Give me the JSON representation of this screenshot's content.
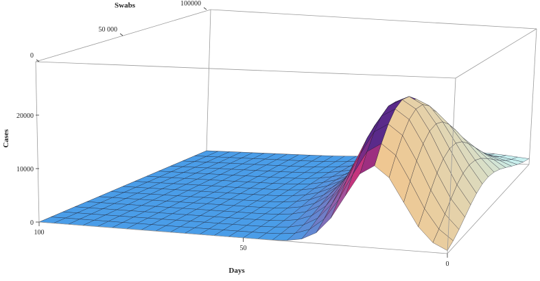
{
  "chart_data": {
    "type": "surface3d",
    "title": "",
    "axes": {
      "x": {
        "label": "Days",
        "range": [
          0,
          100
        ],
        "ticks": [
          0,
          50,
          100
        ]
      },
      "y": {
        "label": "Swabs",
        "range": [
          0,
          100000
        ],
        "ticks": [
          0,
          50000,
          100000
        ],
        "tick_labels": [
          "0",
          "50 000",
          "100000"
        ]
      },
      "z": {
        "label": "Cases",
        "range": [
          0,
          30000
        ],
        "ticks": [
          0,
          10000,
          20000
        ],
        "tick_labels": [
          "0",
          "10000",
          "20000"
        ]
      }
    },
    "surface": {
      "description_values": {
        "peak_cases": 24000,
        "peak_day": 18,
        "peak_swabs": 30000,
        "plateau_days_from": 50,
        "plateau_days_to": 100
      }
    },
    "colors": {
      "plateau": "#4a9de8",
      "rise": "#c8327a",
      "peak": "#5a2a8a",
      "tail": "#f2c48a",
      "tail_far": "#c8f0f0",
      "mesh": "#1a1a2a"
    }
  }
}
